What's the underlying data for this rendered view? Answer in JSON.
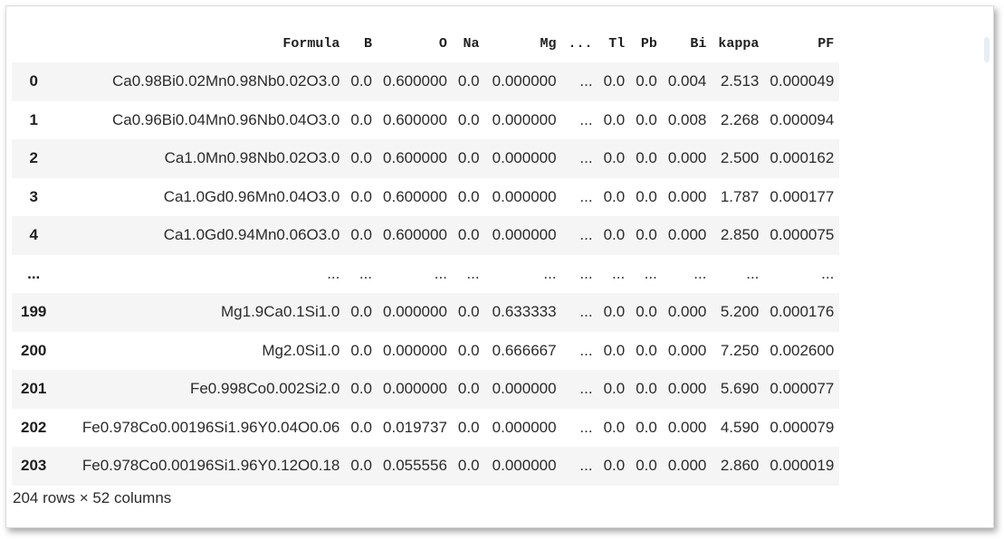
{
  "table": {
    "columns": [
      "",
      "Formula",
      "B",
      "O",
      "Na",
      "Mg",
      "...",
      "Tl",
      "Pb",
      "Bi",
      "kappa",
      "PF"
    ],
    "rows": [
      [
        "0",
        "Ca0.98Bi0.02Mn0.98Nb0.02O3.0",
        "0.0",
        "0.600000",
        "0.0",
        "0.000000",
        "...",
        "0.0",
        "0.0",
        "0.004",
        "2.513",
        "0.000049"
      ],
      [
        "1",
        "Ca0.96Bi0.04Mn0.96Nb0.04O3.0",
        "0.0",
        "0.600000",
        "0.0",
        "0.000000",
        "...",
        "0.0",
        "0.0",
        "0.008",
        "2.268",
        "0.000094"
      ],
      [
        "2",
        "Ca1.0Mn0.98Nb0.02O3.0",
        "0.0",
        "0.600000",
        "0.0",
        "0.000000",
        "...",
        "0.0",
        "0.0",
        "0.000",
        "2.500",
        "0.000162"
      ],
      [
        "3",
        "Ca1.0Gd0.96Mn0.04O3.0",
        "0.0",
        "0.600000",
        "0.0",
        "0.000000",
        "...",
        "0.0",
        "0.0",
        "0.000",
        "1.787",
        "0.000177"
      ],
      [
        "4",
        "Ca1.0Gd0.94Mn0.06O3.0",
        "0.0",
        "0.600000",
        "0.0",
        "0.000000",
        "...",
        "0.0",
        "0.0",
        "0.000",
        "2.850",
        "0.000075"
      ],
      [
        "...",
        "...",
        "...",
        "...",
        "...",
        "...",
        "...",
        "...",
        "...",
        "...",
        "...",
        "..."
      ],
      [
        "199",
        "Mg1.9Ca0.1Si1.0",
        "0.0",
        "0.000000",
        "0.0",
        "0.633333",
        "...",
        "0.0",
        "0.0",
        "0.000",
        "5.200",
        "0.000176"
      ],
      [
        "200",
        "Mg2.0Si1.0",
        "0.0",
        "0.000000",
        "0.0",
        "0.666667",
        "...",
        "0.0",
        "0.0",
        "0.000",
        "7.250",
        "0.002600"
      ],
      [
        "201",
        "Fe0.998Co0.002Si2.0",
        "0.0",
        "0.000000",
        "0.0",
        "0.000000",
        "...",
        "0.0",
        "0.0",
        "0.000",
        "5.690",
        "0.000077"
      ],
      [
        "202",
        "Fe0.978Co0.00196Si1.96Y0.04O0.06",
        "0.0",
        "0.019737",
        "0.0",
        "0.000000",
        "...",
        "0.0",
        "0.0",
        "0.000",
        "4.590",
        "0.000079"
      ],
      [
        "203",
        "Fe0.978Co0.00196Si1.96Y0.12O0.18",
        "0.0",
        "0.055556",
        "0.0",
        "0.000000",
        "...",
        "0.0",
        "0.0",
        "0.000",
        "2.860",
        "0.000019"
      ]
    ],
    "shape_caption": "204 rows × 52 columns"
  }
}
